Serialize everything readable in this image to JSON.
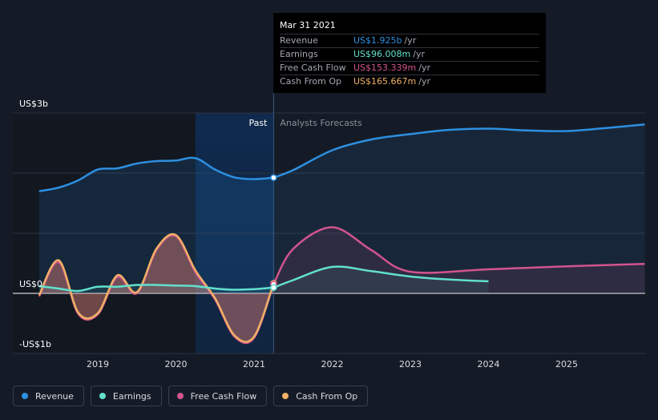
{
  "tooltip": {
    "date": "Mar 31 2021",
    "rows": [
      {
        "label": "Revenue",
        "value": "US$1.925b",
        "unit": "/yr",
        "color": "#2d8fe0"
      },
      {
        "label": "Earnings",
        "value": "US$96.008m",
        "unit": "/yr",
        "color": "#62e0cd"
      },
      {
        "label": "Free Cash Flow",
        "value": "US$153.339m",
        "unit": "/yr",
        "color": "#d2548e"
      },
      {
        "label": "Cash From Op",
        "value": "US$165.667m",
        "unit": "/yr",
        "color": "#f0b066"
      }
    ]
  },
  "sections": {
    "past": "Past",
    "forecast": "Analysts Forecasts"
  },
  "legend": [
    {
      "label": "Revenue",
      "color": "#2d8fe0"
    },
    {
      "label": "Earnings",
      "color": "#62e0cd"
    },
    {
      "label": "Free Cash Flow",
      "color": "#d2548e"
    },
    {
      "label": "Cash From Op",
      "color": "#f0b066"
    }
  ],
  "chart_data": {
    "type": "line",
    "y_unit": "US$ billions",
    "ylim": [
      -1,
      3
    ],
    "y_tick_labels": [
      {
        "value": 3,
        "label": "US$3b"
      },
      {
        "value": 0,
        "label": "US$0"
      },
      {
        "value": -1,
        "label": "-US$1b"
      }
    ],
    "xlim": [
      2018.25,
      2026.0
    ],
    "x_ticks": [
      2019,
      2020,
      2021,
      2022,
      2023,
      2024,
      2025
    ],
    "x_tick_labels": [
      "2019",
      "2020",
      "2021",
      "2022",
      "2023",
      "2024",
      "2025"
    ],
    "past_forecast_boundary": 2021.25,
    "highlight_range": [
      2020.25,
      2021.25
    ],
    "legend_position": "bottom-left",
    "grid": true,
    "series": [
      {
        "name": "Revenue",
        "color": "#2d8fe0",
        "past": [
          [
            2018.25,
            1.7
          ],
          [
            2018.5,
            1.76
          ],
          [
            2018.75,
            1.88
          ],
          [
            2019.0,
            2.06
          ],
          [
            2019.25,
            2.08
          ],
          [
            2019.5,
            2.16
          ],
          [
            2019.75,
            2.2
          ],
          [
            2020.0,
            2.21
          ],
          [
            2020.25,
            2.25
          ],
          [
            2020.5,
            2.06
          ],
          [
            2020.75,
            1.93
          ],
          [
            2021.0,
            1.9
          ],
          [
            2021.25,
            1.925
          ]
        ],
        "forecast": [
          [
            2021.25,
            1.925
          ],
          [
            2021.5,
            2.05
          ],
          [
            2022.0,
            2.38
          ],
          [
            2022.5,
            2.56
          ],
          [
            2023.0,
            2.65
          ],
          [
            2023.5,
            2.72
          ],
          [
            2024.0,
            2.74
          ],
          [
            2024.5,
            2.71
          ],
          [
            2025.0,
            2.7
          ],
          [
            2025.5,
            2.75
          ],
          [
            2026.0,
            2.81
          ]
        ]
      },
      {
        "name": "Earnings",
        "color": "#62e0cd",
        "past": [
          [
            2018.25,
            0.12
          ],
          [
            2018.5,
            0.08
          ],
          [
            2018.75,
            0.04
          ],
          [
            2019.0,
            0.11
          ],
          [
            2019.25,
            0.11
          ],
          [
            2019.5,
            0.14
          ],
          [
            2019.75,
            0.14
          ],
          [
            2020.0,
            0.13
          ],
          [
            2020.25,
            0.12
          ],
          [
            2020.5,
            0.08
          ],
          [
            2020.75,
            0.06
          ],
          [
            2021.0,
            0.07
          ],
          [
            2021.25,
            0.096
          ]
        ],
        "forecast": [
          [
            2021.25,
            0.096
          ],
          [
            2021.5,
            0.22
          ],
          [
            2022.0,
            0.44
          ],
          [
            2022.5,
            0.37
          ],
          [
            2023.0,
            0.28
          ],
          [
            2023.5,
            0.23
          ],
          [
            2024.0,
            0.2
          ]
        ]
      },
      {
        "name": "Free Cash Flow",
        "color": "#d2548e",
        "past": [
          [
            2018.25,
            -0.05
          ],
          [
            2018.5,
            0.52
          ],
          [
            2018.75,
            -0.34
          ],
          [
            2019.0,
            -0.35
          ],
          [
            2019.25,
            0.27
          ],
          [
            2019.5,
            0.0
          ],
          [
            2019.75,
            0.72
          ],
          [
            2020.0,
            0.95
          ],
          [
            2020.25,
            0.35
          ],
          [
            2020.5,
            -0.1
          ],
          [
            2020.75,
            -0.72
          ],
          [
            2021.0,
            -0.74
          ],
          [
            2021.25,
            0.153
          ]
        ],
        "forecast": [
          [
            2021.25,
            0.153
          ],
          [
            2021.5,
            0.74
          ],
          [
            2022.0,
            1.1
          ],
          [
            2022.5,
            0.72
          ],
          [
            2023.0,
            0.36
          ],
          [
            2024.0,
            0.4
          ],
          [
            2025.0,
            0.45
          ],
          [
            2026.0,
            0.49
          ]
        ]
      },
      {
        "name": "Cash From Op",
        "color": "#f0b066",
        "past": [
          [
            2018.25,
            -0.03
          ],
          [
            2018.5,
            0.55
          ],
          [
            2018.75,
            -0.32
          ],
          [
            2019.0,
            -0.33
          ],
          [
            2019.25,
            0.3
          ],
          [
            2019.5,
            0.02
          ],
          [
            2019.75,
            0.74
          ],
          [
            2020.0,
            0.97
          ],
          [
            2020.25,
            0.38
          ],
          [
            2020.5,
            -0.08
          ],
          [
            2020.75,
            -0.7
          ],
          [
            2021.0,
            -0.72
          ],
          [
            2021.25,
            0.166
          ]
        ],
        "forecast": []
      }
    ]
  }
}
